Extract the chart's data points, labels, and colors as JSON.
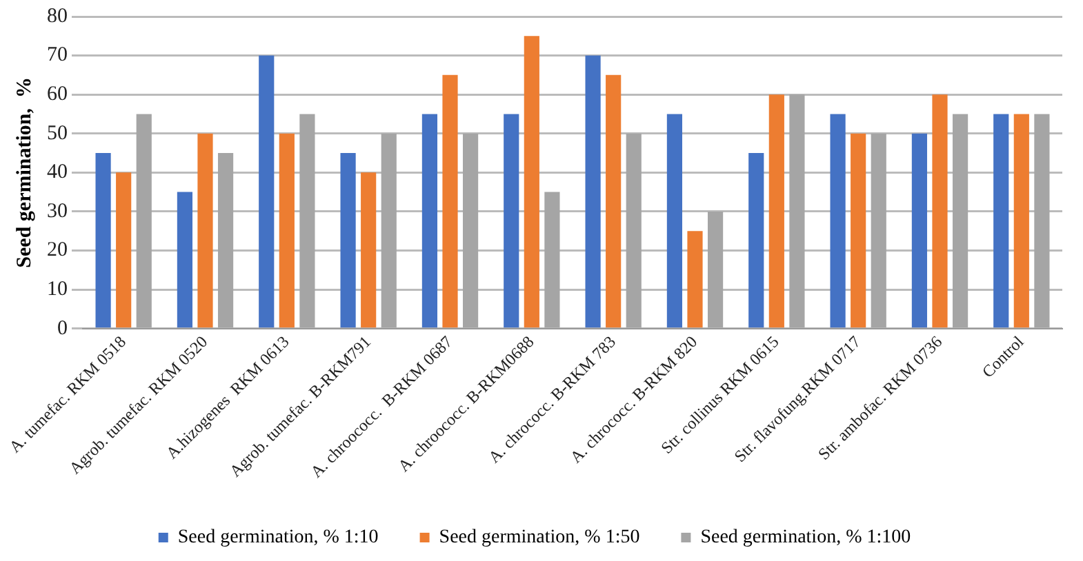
{
  "chart_data": {
    "type": "bar",
    "ylabel": "Seed germination,  %",
    "categories": [
      "A. tumefac. RKM 0518",
      "Agrob. tumefac. RKM 0520",
      "A.hizogenes  RKM 0613",
      "Agrob. tumefac. B-RKM791",
      "A. chroococc.  B-RKM 0687",
      "A. chroococc. B-RKM0688",
      "A. chrococc. B-RKM 783",
      "A. chrococc. B-RKM 820",
      "Str. collinus RKM 0615",
      "Str. flavofung.RKM 0717",
      "Str. ambofac. RKM 0736",
      "Control"
    ],
    "series": [
      {
        "name": "Seed germination, % 1:10",
        "color": "#4472c4",
        "values": [
          45,
          35,
          70,
          45,
          55,
          55,
          70,
          55,
          45,
          55,
          50,
          55
        ]
      },
      {
        "name": "Seed germination, % 1:50",
        "color": "#ed7d31",
        "values": [
          40,
          50,
          50,
          40,
          65,
          75,
          65,
          25,
          60,
          50,
          60,
          55
        ]
      },
      {
        "name": "Seed germination, % 1:100",
        "color": "#a5a5a5",
        "values": [
          55,
          45,
          55,
          50,
          50,
          35,
          50,
          30,
          60,
          50,
          55,
          55
        ]
      }
    ],
    "ylim": [
      0,
      80
    ],
    "yticks": [
      0,
      10,
      20,
      30,
      40,
      50,
      60,
      70,
      80
    ],
    "grid": "y",
    "legend": "bottom"
  }
}
